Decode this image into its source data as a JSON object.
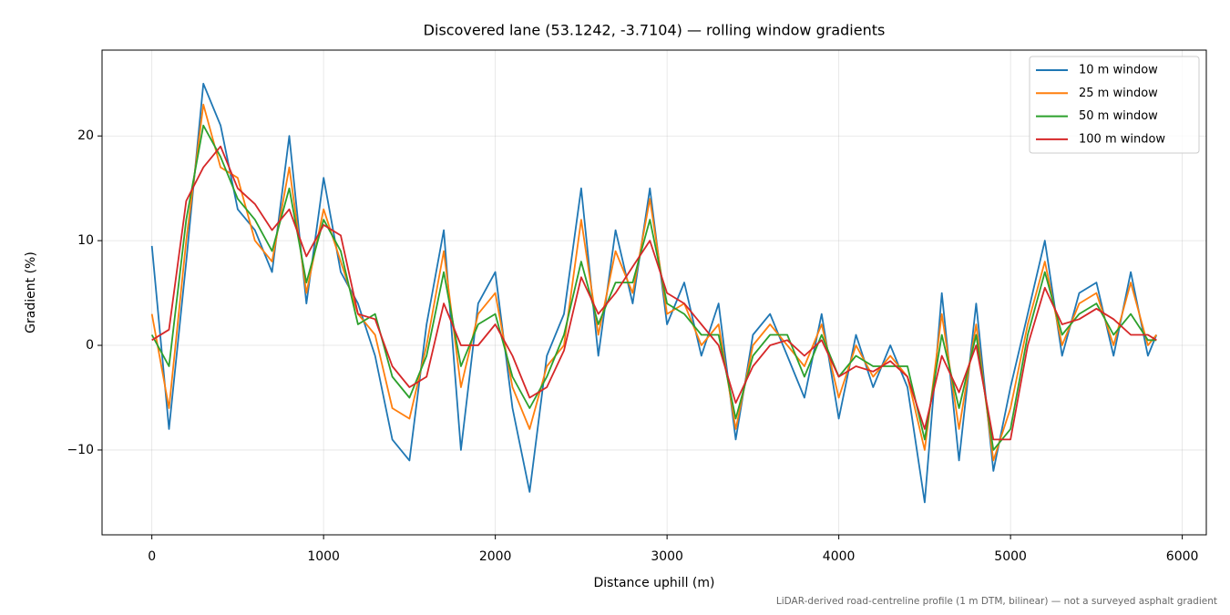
{
  "chart_data": {
    "type": "line",
    "title": "Discovered lane (53.1242, -3.7104) — rolling window gradients",
    "xlabel": "Distance uphill (m)",
    "ylabel": "Gradient (%)",
    "footnote": "LiDAR-derived road-centreline profile (1 m DTM, bilinear) — not a surveyed asphalt gradient",
    "x": [
      0,
      100,
      200,
      300,
      400,
      500,
      600,
      700,
      800,
      900,
      1000,
      1100,
      1200,
      1300,
      1400,
      1500,
      1600,
      1700,
      1800,
      1900,
      2000,
      2100,
      2200,
      2300,
      2400,
      2500,
      2600,
      2700,
      2800,
      2900,
      3000,
      3100,
      3200,
      3300,
      3400,
      3500,
      3600,
      3700,
      3800,
      3900,
      4000,
      4100,
      4200,
      4300,
      4400,
      4500,
      4600,
      4700,
      4800,
      4900,
      5000,
      5100,
      5200,
      5300,
      5400,
      5500,
      5600,
      5700,
      5800,
      5850
    ],
    "series": [
      {
        "name": "10 m window",
        "color": "#1f77b4",
        "values": [
          9.5,
          -8,
          8,
          25,
          21,
          13,
          11,
          7,
          20,
          4,
          16,
          7,
          4,
          -1,
          -9,
          -11,
          2,
          11,
          -10,
          4,
          7,
          -6,
          -14,
          -1,
          3,
          15,
          -1,
          11,
          4,
          15,
          2,
          6,
          -1,
          4,
          -9,
          1,
          3,
          -1,
          -5,
          3,
          -7,
          1,
          -4,
          0,
          -4,
          -15,
          5,
          -11,
          4,
          -12,
          -4,
          3,
          10,
          -1,
          5,
          6,
          -1,
          7,
          -1,
          1
        ]
      },
      {
        "name": "25 m window",
        "color": "#ff7f0e",
        "values": [
          3,
          -6,
          10,
          23,
          17,
          16,
          10,
          8,
          17,
          5,
          13,
          8,
          3,
          1,
          -6,
          -7,
          0,
          9,
          -4,
          3,
          5,
          -4,
          -8,
          -2,
          0,
          12,
          1,
          9,
          5,
          14,
          3,
          4,
          0,
          2,
          -8,
          0,
          2,
          0,
          -2,
          2,
          -5,
          0,
          -3,
          -1,
          -3,
          -10,
          3,
          -8,
          2,
          -11,
          -6,
          2,
          8,
          0,
          4,
          5,
          0,
          6,
          0,
          1
        ]
      },
      {
        "name": "50 m window",
        "color": "#2ca02c",
        "values": [
          1,
          -2,
          12,
          21,
          18,
          14,
          12,
          9,
          15,
          6,
          12,
          9,
          2,
          3,
          -3,
          -5,
          -1,
          7,
          -2,
          2,
          3,
          -3,
          -6,
          -3,
          1,
          8,
          2,
          6,
          6,
          12,
          4,
          3,
          1,
          1,
          -7,
          -1,
          1,
          1,
          -3,
          1,
          -3,
          -1,
          -2,
          -2,
          -2,
          -9,
          1,
          -6,
          1,
          -10,
          -8,
          1,
          7,
          1,
          3,
          4,
          1,
          3,
          0.5,
          0.5
        ]
      },
      {
        "name": "100 m window",
        "color": "#d62728",
        "values": [
          0.5,
          1.5,
          13.8,
          17,
          19,
          15,
          13.5,
          11,
          13,
          8.5,
          11.5,
          10.5,
          3,
          2.5,
          -2,
          -4,
          -3,
          4,
          0,
          0,
          2,
          -1,
          -5,
          -4,
          -0.5,
          6.5,
          3,
          5,
          7.5,
          10,
          5,
          4,
          2,
          0,
          -5.5,
          -2,
          0,
          0.5,
          -1,
          0.5,
          -3,
          -2,
          -2.5,
          -1.5,
          -3,
          -8,
          -1,
          -4.5,
          0,
          -9,
          -9,
          0,
          5.5,
          2,
          2.5,
          3.5,
          2.5,
          1,
          1,
          0.5
        ]
      }
    ],
    "xlim": [
      -290,
      6140
    ],
    "ylim": [
      -18.1,
      28.2
    ],
    "xticks": [
      0,
      1000,
      2000,
      3000,
      4000,
      5000,
      6000
    ],
    "yticks": [
      {
        "value": -10,
        "label": "−10"
      },
      0,
      10,
      20
    ],
    "grid": true,
    "legend": "upper right"
  }
}
